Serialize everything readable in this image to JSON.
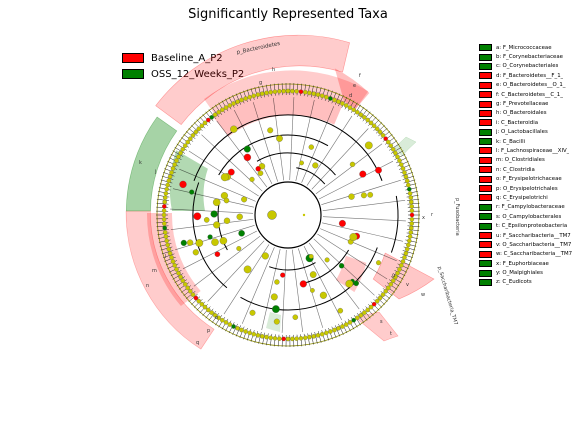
{
  "title": "Significantly Represented Taxa",
  "groups": [
    {
      "label": "Baseline_A_P2",
      "color": "#ff0000"
    },
    {
      "label": "OSS_12_Weeks_P2",
      "color": "#008000"
    }
  ],
  "taxa": [
    {
      "label": "a: F_Micrococcaceae",
      "group": 1
    },
    {
      "label": "b: F_Corynebacteriaceae",
      "group": 1
    },
    {
      "label": "c: O_Corynebacteriales",
      "group": 1
    },
    {
      "label": "d: F_Bacteroidetes__F_1_",
      "group": 0
    },
    {
      "label": "e: O_Bacteroidetes__O_1_",
      "group": 0
    },
    {
      "label": "f: C_Bacteroidetes__C_1_",
      "group": 0
    },
    {
      "label": "g: F_Prevotellaceae",
      "group": 0
    },
    {
      "label": "h: O_Bacteroidales",
      "group": 0
    },
    {
      "label": "i: C_Bacteroidia",
      "group": 0
    },
    {
      "label": "j: O_Lactobacillales",
      "group": 1
    },
    {
      "label": "k: C_Bacilli",
      "group": 1
    },
    {
      "label": "l: F_Lachnospiraceae__XIV_",
      "group": 0
    },
    {
      "label": "m: O_Clostridiales",
      "group": 0
    },
    {
      "label": "n: C_Clostridia",
      "group": 0
    },
    {
      "label": "o: F_Erysipelotrichaceae",
      "group": 0
    },
    {
      "label": "p: O_Erysipelotrichales",
      "group": 0
    },
    {
      "label": "q: C_Erysipelotrichi",
      "group": 0
    },
    {
      "label": "r: F_Campylobacteraceae",
      "group": 1
    },
    {
      "label": "s: O_Campylobacterales",
      "group": 1
    },
    {
      "label": "t: C_Epsilonproteobacteria",
      "group": 1
    },
    {
      "label": "u: F_Saccharibacteria__TM7",
      "group": 0
    },
    {
      "label": "v: O_Saccharibacteria__TM7",
      "group": 0
    },
    {
      "label": "w: C_Saccharibacteria__TM7",
      "group": 0
    },
    {
      "label": "x: F_Euphorbiaceae",
      "group": 1
    },
    {
      "label": "y: O_Malpighiales",
      "group": 1
    },
    {
      "label": "z: C_Eudicots",
      "group": 1
    }
  ],
  "clade_labels": {
    "bacteroidetes": "p_Bacteroidetes",
    "fusobacteria": "p_Fusobacteria",
    "saccharibacteria": "p_Saccharibacteria_TM7"
  }
}
